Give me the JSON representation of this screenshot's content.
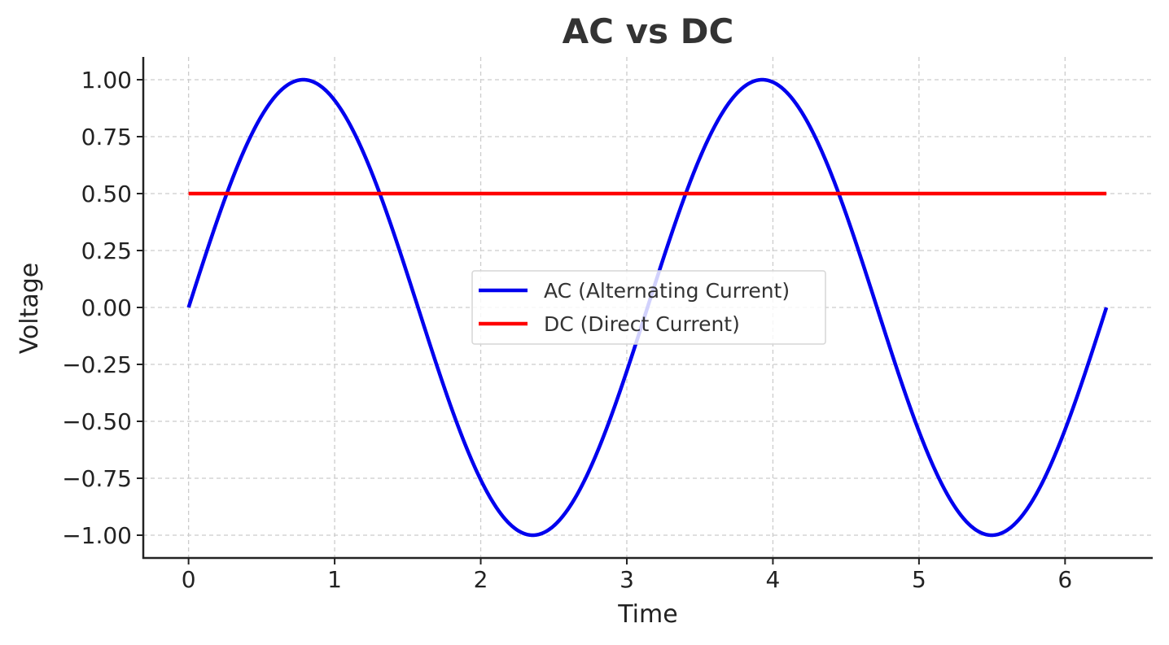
{
  "chart_data": {
    "type": "line",
    "title": "AC vs DC",
    "xlabel": "Time",
    "ylabel": "Voltage",
    "xlim": [
      -0.31,
      6.6
    ],
    "ylim": [
      -1.1,
      1.1
    ],
    "xticks": [
      0,
      1,
      2,
      3,
      4,
      5,
      6
    ],
    "xtick_labels": [
      "0",
      "1",
      "2",
      "3",
      "4",
      "5",
      "6"
    ],
    "yticks": [
      1.0,
      0.75,
      0.5,
      0.25,
      0.0,
      -0.25,
      -0.5,
      -0.75,
      -1.0
    ],
    "ytick_labels": [
      "1.00",
      "0.75",
      "0.50",
      "0.25",
      "0.00",
      "−0.25",
      "−0.50",
      "−0.75",
      "−1.00"
    ],
    "grid": true,
    "legend_position": "center",
    "series": [
      {
        "name": "AC (Alternating Current)",
        "color": "#0000ee",
        "x": [
          0,
          0.2,
          0.4,
          0.6,
          0.785,
          1.0,
          1.2,
          1.4,
          1.6,
          1.8,
          2.0,
          2.2,
          2.356,
          2.6,
          2.8,
          3.0,
          3.2,
          3.4,
          3.6,
          3.8,
          3.927,
          4.2,
          4.4,
          4.6,
          4.8,
          5.0,
          5.2,
          5.4,
          5.498,
          5.8,
          6.0,
          6.2,
          6.283
        ],
        "y": [
          0.0,
          0.389,
          0.717,
          0.932,
          1.0,
          0.909,
          0.675,
          0.335,
          -0.058,
          -0.443,
          -0.757,
          -0.951,
          -1.0,
          -0.883,
          -0.631,
          -0.279,
          0.117,
          0.494,
          0.794,
          0.968,
          1.0,
          0.855,
          0.585,
          0.222,
          -0.174,
          -0.544,
          -0.828,
          -0.98,
          -1.0,
          -0.823,
          -0.537,
          -0.167,
          0.0
        ]
      },
      {
        "name": "DC (Direct Current)",
        "color": "#ff0000",
        "x": [
          0,
          6.283
        ],
        "y": [
          0.5,
          0.5
        ]
      }
    ]
  }
}
